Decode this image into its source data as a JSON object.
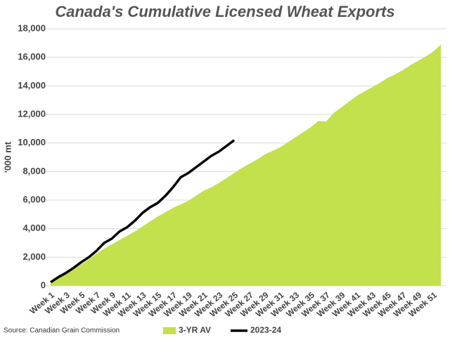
{
  "chart_data": {
    "type": "area",
    "title": "Canada's Cumulative Licensed Wheat Exports",
    "y_label": "'000 mt",
    "source": "Source: Canadian Grain Commission",
    "categories": [
      "Week 1",
      null,
      "Week 3",
      null,
      "Week 5",
      null,
      "Week 7",
      null,
      "Week 9",
      null,
      "Week 11",
      null,
      "Week 13",
      null,
      "Week 15",
      null,
      "Week 17",
      null,
      "Week 19",
      null,
      "Week 21",
      null,
      "Week 23",
      null,
      "Week 25",
      null,
      "Week 27",
      null,
      "Week 29",
      null,
      "Week 31",
      null,
      "Week 33",
      null,
      "Week 35",
      null,
      "Week 37",
      null,
      "Week 39",
      null,
      "Week 41",
      null,
      "Week 43",
      null,
      "Week 45",
      null,
      "Week 47",
      null,
      "Week 49",
      null,
      "Week 51",
      null
    ],
    "series": [
      {
        "name": "3-YR AV",
        "type": "area",
        "color": "#c3e04d",
        "values": [
          250,
          550,
          850,
          1150,
          1500,
          1850,
          2250,
          2600,
          2900,
          3200,
          3500,
          3800,
          4150,
          4500,
          4850,
          5150,
          5450,
          5700,
          5950,
          6300,
          6650,
          6900,
          7200,
          7550,
          7900,
          8250,
          8550,
          8850,
          9200,
          9450,
          9700,
          10050,
          10400,
          10750,
          11100,
          11550,
          11500,
          12100,
          12500,
          12900,
          13300,
          13600,
          13900,
          14200,
          14550,
          14800,
          15100,
          15450,
          15750,
          16050,
          16400,
          16900
        ]
      },
      {
        "name": "2023-24",
        "type": "line",
        "color": "#000000",
        "values": [
          250,
          600,
          900,
          1250,
          1650,
          2000,
          2450,
          3000,
          3300,
          3800,
          4100,
          4550,
          5100,
          5500,
          5800,
          6300,
          6900,
          7600,
          7900,
          8300,
          8700,
          9100,
          9400,
          9800,
          10200,
          null,
          null,
          null,
          null,
          null,
          null,
          null,
          null,
          null,
          null,
          null,
          null,
          null,
          null,
          null,
          null,
          null,
          null,
          null,
          null,
          null,
          null,
          null,
          null,
          null,
          null,
          null
        ]
      }
    ],
    "ylim": [
      0,
      18000
    ],
    "yticks": [
      0,
      {
        "value": 2000,
        "label": "2,000"
      },
      {
        "value": 4000,
        "label": "4,000"
      },
      {
        "value": 6000,
        "label": "6,000"
      },
      {
        "value": 8000,
        "label": "8,000"
      },
      {
        "value": 10000,
        "label": "10,000"
      },
      {
        "value": 12000,
        "label": "12,000"
      },
      {
        "value": 14000,
        "label": "14,000"
      },
      {
        "value": 16000,
        "label": "16,000"
      },
      {
        "value": 18000,
        "label": "18,000"
      }
    ],
    "grid": true
  }
}
